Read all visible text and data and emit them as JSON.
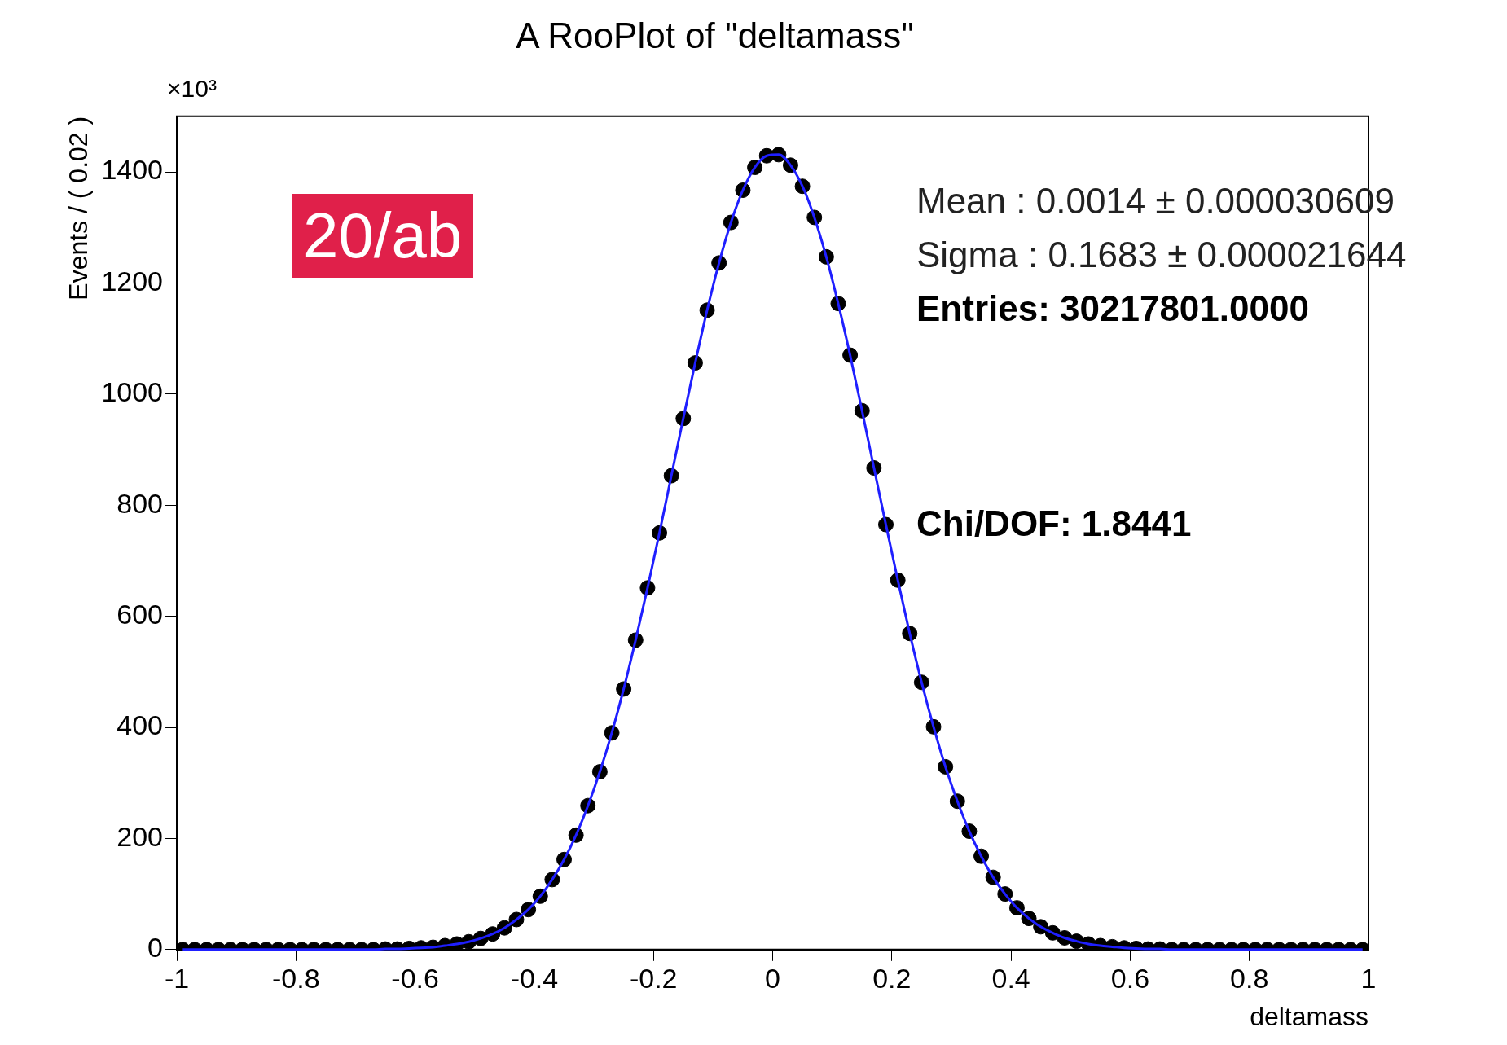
{
  "chart_data": {
    "type": "scatter",
    "title": "A RooPlot of \"deltamass\"",
    "xlabel": "deltamass",
    "ylabel": "Events / ( 0.02 )",
    "annotations": [
      "×10³",
      "20/ab",
      "Mean : 0.0014 ± 0.000030609",
      "Sigma : 0.1683 ± 0.000021644",
      "Entries: 30217801.0000",
      "Chi/DOF: 1.8441"
    ],
    "x": [
      -0.99,
      -0.97,
      -0.95,
      -0.93,
      -0.91,
      -0.89,
      -0.87,
      -0.85,
      -0.83,
      -0.81,
      -0.79,
      -0.77,
      -0.75,
      -0.73,
      -0.71,
      -0.69,
      -0.67,
      -0.65,
      -0.63,
      -0.61,
      -0.59,
      -0.57,
      -0.55,
      -0.53,
      -0.51,
      -0.49,
      -0.47,
      -0.45,
      -0.43,
      -0.41,
      -0.39,
      -0.37,
      -0.35,
      -0.33,
      -0.31,
      -0.29,
      -0.27,
      -0.25,
      -0.23,
      -0.21,
      -0.19,
      -0.17,
      -0.15,
      -0.13,
      -0.11,
      -0.09,
      -0.07,
      -0.05,
      -0.03,
      -0.01,
      0.01,
      0.03,
      0.05,
      0.07,
      0.09,
      0.11,
      0.13,
      0.15,
      0.17,
      0.19,
      0.21,
      0.23,
      0.25,
      0.27,
      0.29,
      0.31,
      0.33,
      0.35,
      0.37,
      0.39,
      0.41,
      0.43,
      0.45,
      0.47,
      0.49,
      0.51,
      0.53,
      0.55,
      0.57,
      0.59,
      0.61,
      0.63,
      0.65,
      0.67,
      0.69,
      0.71,
      0.73,
      0.75,
      0.77,
      0.79,
      0.81,
      0.83,
      0.85,
      0.87,
      0.89,
      0.91,
      0.93,
      0.95,
      0.97,
      0.99
    ],
    "series": [
      {
        "type": "scatter",
        "color": "#000000",
        "marker": "circle",
        "values": [
          0,
          0,
          0,
          0,
          0,
          0,
          0,
          0,
          0,
          0,
          0,
          0,
          0,
          0,
          0,
          0,
          0,
          1,
          1,
          2,
          3,
          4,
          7,
          10,
          14,
          20,
          28,
          39,
          54,
          72,
          96,
          126,
          162,
          206,
          259,
          320,
          390,
          469,
          557,
          651,
          750,
          853,
          956,
          1056,
          1151,
          1236,
          1309,
          1367,
          1408,
          1429,
          1431,
          1412,
          1374,
          1318,
          1247,
          1163,
          1070,
          970,
          867,
          765,
          665,
          569,
          481,
          401,
          329,
          267,
          213,
          168,
          130,
          100,
          75,
          56,
          41,
          30,
          21,
          15,
          10,
          7,
          5,
          3,
          2,
          1,
          1,
          0,
          0,
          0,
          0,
          0,
          0,
          0,
          0,
          0,
          0,
          0,
          0,
          0,
          0,
          0,
          0,
          0
        ]
      },
      {
        "type": "line",
        "color": "#1f1fff",
        "marker": "none",
        "line_style": "solid",
        "values": [
          0,
          0,
          0,
          0,
          0,
          0,
          0,
          0,
          0,
          0,
          0,
          0,
          0,
          0,
          0,
          0,
          0,
          1,
          1,
          2,
          3,
          4,
          7,
          10,
          14,
          20,
          28,
          39,
          54,
          72,
          96,
          126,
          162,
          206,
          259,
          320,
          390,
          469,
          557,
          651,
          750,
          853,
          956,
          1056,
          1151,
          1236,
          1309,
          1367,
          1408,
          1429,
          1431,
          1412,
          1374,
          1318,
          1247,
          1163,
          1070,
          970,
          867,
          765,
          665,
          569,
          481,
          401,
          329,
          267,
          213,
          168,
          130,
          100,
          75,
          56,
          41,
          30,
          21,
          15,
          10,
          7,
          5,
          3,
          2,
          1,
          1,
          0,
          0,
          0,
          0,
          0,
          0,
          0,
          0,
          0,
          0,
          0,
          0,
          0,
          0,
          0,
          0,
          0
        ]
      }
    ],
    "xlim": [
      -1,
      1
    ],
    "xticks": [
      -1,
      -0.8,
      -0.6,
      -0.4,
      -0.2,
      0,
      0.2,
      0.4,
      0.6,
      0.8,
      1
    ],
    "ylim": [
      0,
      1500
    ],
    "yticks": [
      0,
      200,
      400,
      600,
      800,
      1000,
      1200,
      1400
    ],
    "grid": false,
    "legend": false
  }
}
